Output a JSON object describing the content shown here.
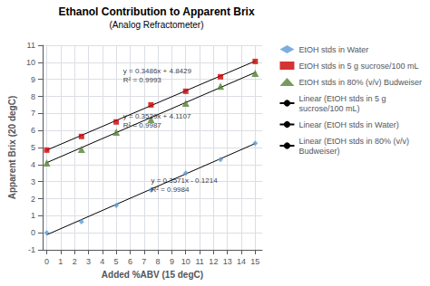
{
  "chart_data": {
    "type": "scatter",
    "title": "Ethanol Contribution to Apparent Brix",
    "subtitle": "(Analog Refractometer)",
    "xlabel": "Added %ABV (15 degC)",
    "ylabel": "Apparent Brix (20 degC)",
    "xlim": [
      -0.3,
      15.5
    ],
    "ylim": [
      -1,
      11
    ],
    "xticks": [
      0,
      1,
      2,
      3,
      4,
      5,
      6,
      7,
      8,
      9,
      10,
      11,
      12,
      13,
      14,
      15
    ],
    "yticks": [
      -1,
      0,
      1,
      2,
      3,
      4,
      5,
      6,
      7,
      8,
      9,
      10,
      11
    ],
    "grid": true,
    "legend": "right",
    "series": [
      {
        "name": "EtOH stds in Water",
        "type": "scatter",
        "color": "#5B9BD5",
        "marker": "diamond",
        "x": [
          0,
          2.5,
          5.0,
          7.5,
          10.0,
          12.5,
          15.0
        ],
        "values": [
          0.0,
          0.65,
          1.6,
          2.5,
          3.5,
          4.3,
          5.25
        ]
      },
      {
        "name": "EtOH stds in 5 g sucrose/100 mL",
        "type": "scatter",
        "color": "#CC0000",
        "marker": "square",
        "x": [
          0,
          2.5,
          5.0,
          7.5,
          10.0,
          12.5,
          15.0
        ],
        "values": [
          4.85,
          5.65,
          6.5,
          7.5,
          8.3,
          9.15,
          10.05
        ]
      },
      {
        "name": "EtOH stds in 80% (v/v) Budweiser",
        "type": "scatter",
        "color": "#548235",
        "marker": "triangle",
        "x": [
          0,
          2.5,
          5.0,
          7.5,
          10.0,
          12.5,
          15.0
        ],
        "values": [
          4.1,
          4.9,
          5.9,
          6.65,
          7.6,
          8.6,
          9.35
        ]
      },
      {
        "name": "Linear (EtOH stds in 5 g\nsucrose/100 mL)",
        "type": "line",
        "color": "#000000",
        "line_style": "solid",
        "x": [
          0,
          15
        ],
        "values": [
          4.8429,
          10.0719
        ]
      },
      {
        "name": "Linear (EtOH stds in Water)",
        "type": "line",
        "color": "#000000",
        "line_style": "solid",
        "x": [
          0,
          15
        ],
        "values": [
          -0.1214,
          5.2351
        ]
      },
      {
        "name": "Linear (EtOH stds in 80% (v/v)\nBudweiser)",
        "type": "line",
        "color": "#000000",
        "line_style": "solid",
        "x": [
          0,
          15
        ],
        "values": [
          4.1107,
          9.4042
        ]
      }
    ],
    "annotations": [
      {
        "text": "y = 0.3486x + 4.8429\nR² = 0.9993",
        "x": 5.5,
        "y": 8.7
      },
      {
        "text": "y = 0.3529x + 4.1107\nR² = 0.9987",
        "x": 5.5,
        "y": 6.05
      },
      {
        "text": "y = 0.3571x - 0.1214\nR² = 0.9984",
        "x": 7.5,
        "y": 2.25
      }
    ]
  }
}
